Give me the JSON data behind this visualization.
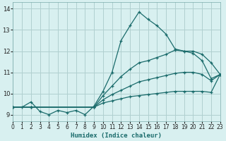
{
  "xlabel": "Humidex (Indice chaleur)",
  "bg_color": "#d8f0f0",
  "grid_color": "#b0d0d0",
  "line_color": "#1a6b6b",
  "xlim": [
    0,
    23
  ],
  "ylim": [
    8.7,
    14.3
  ],
  "xticks": [
    0,
    1,
    2,
    3,
    4,
    5,
    6,
    7,
    8,
    9,
    10,
    11,
    12,
    13,
    14,
    15,
    16,
    17,
    18,
    19,
    20,
    21,
    22,
    23
  ],
  "yticks": [
    9,
    10,
    11,
    12,
    13,
    14
  ],
  "line1_x": [
    0,
    1,
    2,
    3,
    4,
    5,
    6,
    7,
    8,
    9,
    10,
    11,
    12,
    13,
    14,
    15,
    16,
    17,
    18,
    19,
    20,
    21,
    22,
    23
  ],
  "line1_y": [
    9.35,
    9.35,
    9.6,
    9.15,
    9.0,
    9.2,
    9.1,
    9.2,
    9.0,
    9.4,
    10.1,
    11.0,
    12.5,
    13.2,
    13.85,
    13.5,
    13.2,
    12.8,
    12.1,
    12.0,
    11.9,
    11.55,
    10.7,
    10.9
  ],
  "line2_x": [
    0,
    2,
    9,
    10,
    11,
    12,
    13,
    14,
    15,
    16,
    17,
    18,
    19,
    20,
    21,
    22,
    23
  ],
  "line2_y": [
    9.35,
    9.35,
    9.35,
    9.9,
    10.35,
    10.8,
    11.15,
    11.45,
    11.55,
    11.7,
    11.85,
    12.05,
    12.0,
    12.0,
    11.85,
    11.45,
    10.9
  ],
  "line3_x": [
    0,
    2,
    9,
    10,
    11,
    12,
    13,
    14,
    15,
    16,
    17,
    18,
    19,
    20,
    21,
    22,
    23
  ],
  "line3_y": [
    9.35,
    9.35,
    9.35,
    9.7,
    9.95,
    10.15,
    10.35,
    10.55,
    10.65,
    10.75,
    10.85,
    10.95,
    11.0,
    11.0,
    10.9,
    10.6,
    10.9
  ],
  "line4_x": [
    0,
    2,
    9,
    10,
    11,
    12,
    13,
    14,
    15,
    16,
    17,
    18,
    19,
    20,
    21,
    22,
    23
  ],
  "line4_y": [
    9.35,
    9.35,
    9.35,
    9.55,
    9.65,
    9.75,
    9.85,
    9.9,
    9.95,
    10.0,
    10.05,
    10.1,
    10.1,
    10.1,
    10.1,
    10.05,
    10.9
  ]
}
